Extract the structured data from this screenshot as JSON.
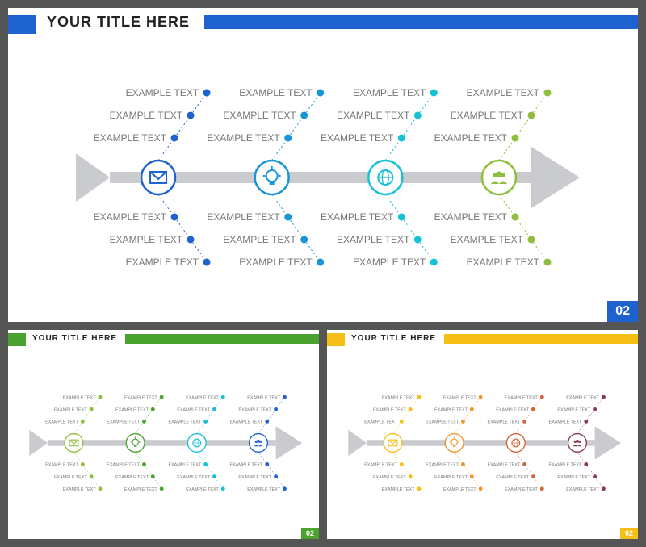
{
  "global": {
    "title_text": "YOUR TITLE HERE",
    "spine_color": "#c9cbce",
    "background": "#ffffff",
    "bone_label": "EXAMPLE TEXT",
    "bone_dot_radius": 4.5,
    "icon_circle_radius": 21,
    "icon_circle_stroke": 2.5,
    "branches_per_side": 4,
    "dots_per_branch": 3,
    "page_number": "02"
  },
  "variants": [
    {
      "id": "blue",
      "title_accent": "#1e62d0",
      "stripe_color": "#1e62d0",
      "page_badge_bg": "#1e62d0",
      "branch_colors": [
        "#1e62d0",
        "#1895d6",
        "#17c1d6",
        "#8fbe3f"
      ],
      "icons": [
        "mail",
        "bulb",
        "globe",
        "people"
      ]
    },
    {
      "id": "green",
      "title_accent": "#4aa22f",
      "stripe_color": "#4aa22f",
      "page_badge_bg": "#4aa22f",
      "branch_colors": [
        "#8fbe3f",
        "#4aa22f",
        "#17c1d6",
        "#1e62d0"
      ],
      "icons": [
        "mail",
        "bulb",
        "globe",
        "people"
      ]
    },
    {
      "id": "yellow",
      "title_accent": "#f6bf16",
      "stripe_color": "#f6bf16",
      "page_badge_bg": "#f6bf16",
      "branch_colors": [
        "#f6bf16",
        "#f3962a",
        "#d4623b",
        "#8a3a4a"
      ],
      "icons": [
        "mail",
        "bulb",
        "globe",
        "people"
      ]
    }
  ],
  "diagram_style": {
    "type": "fishbone",
    "spine_y": 0.5,
    "spine_thickness": 14,
    "tail_triangle_w": 42,
    "head_triangle_w": 60,
    "branch_angle_deg": 64,
    "branch_dot_spacing": 28,
    "branch_colors_note": "branch_colors map to each of the 4 vertical branch groups left→right",
    "label_font_size": 12,
    "label_font_size_small": 5,
    "label_color": "#888888"
  }
}
